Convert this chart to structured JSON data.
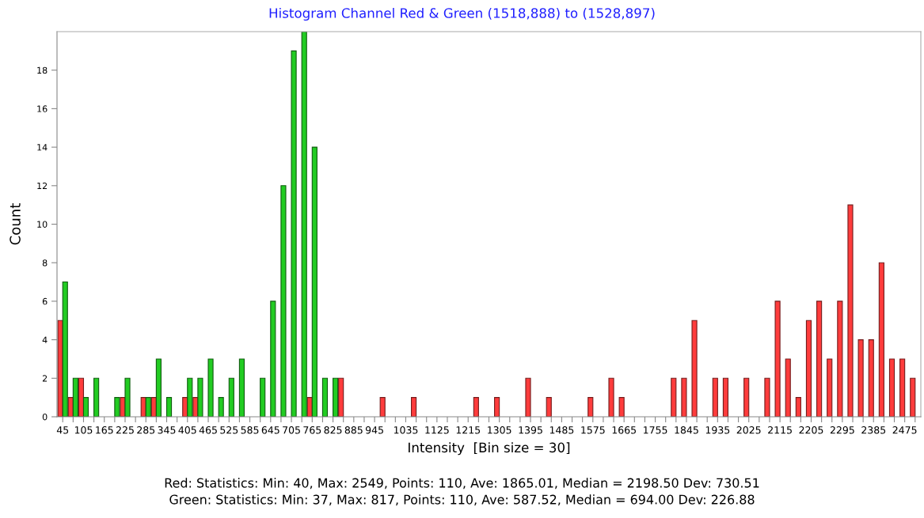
{
  "chart_data": {
    "type": "bar",
    "title": "Histogram Channel Red & Green (1518,888) to (1528,897)",
    "xlabel": "Intensity  [Bin size = 30]",
    "ylabel": "Count",
    "categories": [
      "45",
      null,
      "105",
      null,
      "165",
      null,
      "225",
      null,
      "285",
      null,
      "345",
      null,
      "405",
      null,
      "465",
      null,
      "525",
      null,
      "585",
      null,
      "645",
      null,
      "705",
      null,
      "765",
      null,
      "825",
      null,
      "885",
      null,
      "945",
      null,
      null,
      "1035",
      null,
      null,
      "1125",
      null,
      null,
      "1215",
      null,
      null,
      "1305",
      null,
      null,
      "1395",
      null,
      null,
      "1485",
      null,
      null,
      "1575",
      null,
      null,
      "1665",
      null,
      null,
      "1755",
      null,
      null,
      "1845",
      null,
      null,
      "1935",
      null,
      null,
      "2025",
      null,
      null,
      "2115",
      null,
      null,
      "2205",
      null,
      null,
      "2295",
      null,
      null,
      "2385",
      null,
      null,
      "2475",
      null
    ],
    "series": [
      {
        "color": "#ff3c3c",
        "values": [
          5,
          1,
          2,
          0,
          0,
          0,
          1,
          0,
          1,
          1,
          0,
          0,
          1,
          1,
          0,
          0,
          0,
          0,
          0,
          0,
          0,
          0,
          0,
          0,
          1,
          0,
          0,
          2,
          0,
          0,
          0,
          1,
          0,
          0,
          1,
          0,
          0,
          0,
          0,
          0,
          1,
          0,
          1,
          0,
          0,
          2,
          0,
          1,
          0,
          0,
          0,
          1,
          0,
          2,
          1,
          0,
          0,
          0,
          0,
          2,
          2,
          5,
          0,
          2,
          2,
          0,
          2,
          0,
          2,
          6,
          3,
          1,
          5,
          6,
          3,
          6,
          11,
          4,
          4,
          8,
          3,
          3,
          2
        ]
      },
      {
        "color": "#22cc22",
        "values": [
          7,
          2,
          1,
          2,
          0,
          1,
          2,
          0,
          1,
          3,
          1,
          0,
          2,
          2,
          3,
          1,
          2,
          3,
          0,
          2,
          6,
          12,
          19,
          20,
          14,
          2,
          2,
          0,
          0,
          0,
          0,
          0,
          0,
          0,
          0,
          0,
          0,
          0,
          0,
          0,
          0,
          0,
          0,
          0,
          0,
          0,
          0,
          0,
          0,
          0,
          0,
          0,
          0,
          0,
          0,
          0,
          0,
          0,
          0,
          0,
          0,
          0,
          0,
          0,
          0,
          0,
          0,
          0,
          0,
          0,
          0,
          0,
          0,
          0,
          0,
          0,
          0,
          0,
          0,
          0,
          0,
          0,
          0
        ]
      }
    ],
    "ylim": [
      0,
      20
    ],
    "yticks": [
      0,
      2,
      4,
      6,
      8,
      10,
      12,
      14,
      16,
      18
    ],
    "grid": false,
    "legend": false,
    "annotations": [
      "Red: Statistics: Min: 40, Max: 2549, Points: 110, Ave: 1865.01, Median = 2198.50 Dev: 730.51",
      "Green: Statistics: Min: 37, Max: 817, Points: 110, Ave: 587.52, Median = 694.00 Dev: 226.88"
    ]
  }
}
